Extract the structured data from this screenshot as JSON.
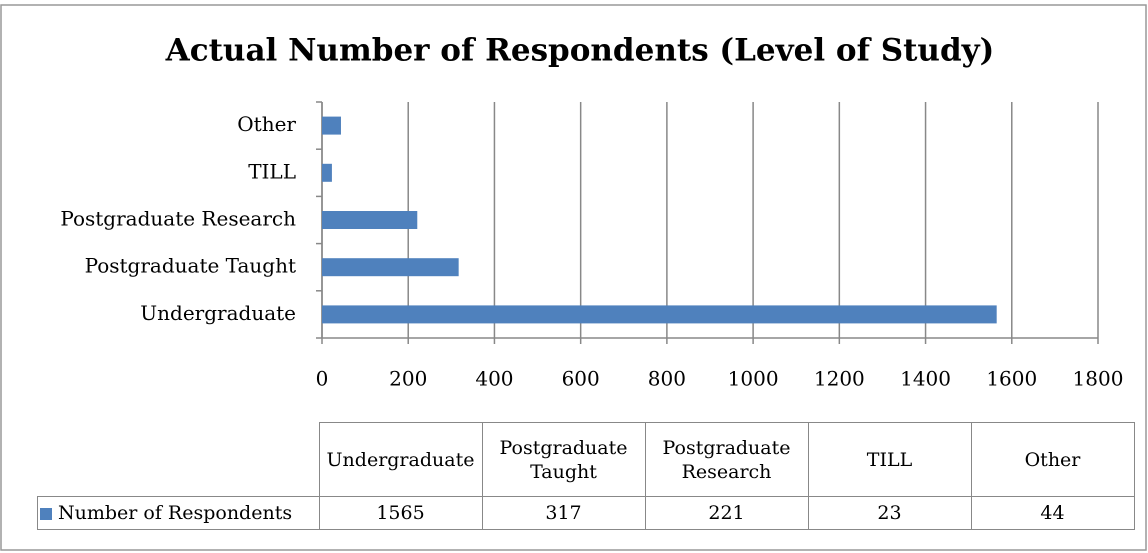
{
  "chart_data": {
    "type": "bar",
    "orientation": "horizontal",
    "title": "Actual Number of Respondents (Level of Study)",
    "categories": [
      "Undergraduate",
      "Postgraduate Taught",
      "Postgraduate Research",
      "TILL",
      "Other"
    ],
    "series": [
      {
        "name": "Number of Respondents",
        "color": "#4f81bd",
        "values": [
          1565,
          317,
          221,
          23,
          44
        ]
      }
    ],
    "xlim": [
      0,
      1800
    ],
    "xticks": [
      0,
      200,
      400,
      600,
      800,
      1000,
      1200,
      1400,
      1600,
      1800
    ],
    "grid": true
  }
}
